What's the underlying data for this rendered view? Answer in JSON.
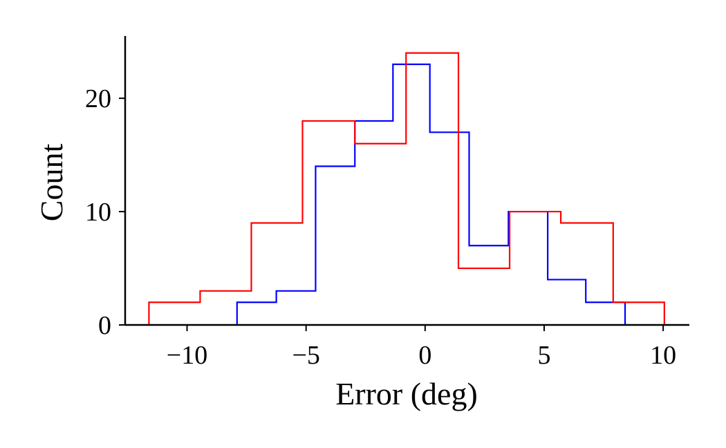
{
  "chart_data": {
    "type": "histogram",
    "title": "",
    "xlabel": "Error (deg)",
    "ylabel": "Count",
    "xlim": [
      -12.6,
      11.1
    ],
    "ylim": [
      0,
      25.5
    ],
    "x_ticks": [
      -10,
      -5,
      0,
      5,
      10
    ],
    "x_tick_labels": [
      "−10",
      "−5",
      "0",
      "5",
      "10"
    ],
    "y_ticks": [
      0,
      10,
      20
    ],
    "y_tick_labels": [
      "0",
      "10",
      "20"
    ],
    "grid": false,
    "legend": false,
    "series": [
      {
        "color": "#0000ff",
        "bin_edges": [
          -7.9,
          -6.25,
          -4.6,
          -2.95,
          -1.35,
          0.2,
          1.85,
          3.5,
          5.15,
          6.75,
          8.4
        ],
        "counts": [
          2,
          3,
          14,
          18,
          23,
          17,
          7,
          10,
          4,
          2
        ]
      },
      {
        "color": "#ff0000",
        "bin_edges": [
          -11.6,
          -9.45,
          -7.3,
          -5.15,
          -2.95,
          -0.8,
          1.4,
          3.55,
          5.7,
          7.9,
          10.05
        ],
        "counts": [
          2,
          3,
          9,
          18,
          16,
          24,
          5,
          10,
          9,
          2
        ]
      }
    ]
  }
}
